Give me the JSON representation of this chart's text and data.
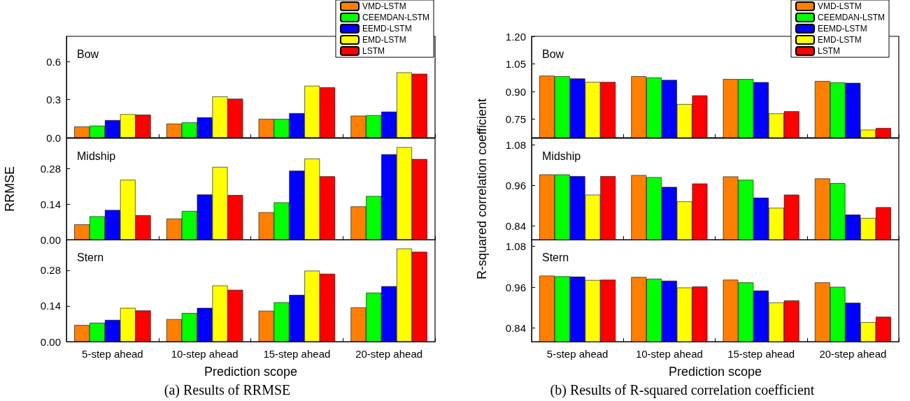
{
  "chart_data": [
    {
      "type": "bar",
      "title": "Bow",
      "categories": [
        null,
        null,
        null,
        null
      ],
      "legend": "top right",
      "tick_labels": "y",
      "ylim": [
        0,
        0.8
      ],
      "yticks": [
        {
          "value": 0,
          "label": "0.0"
        },
        0.3,
        0.6
      ],
      "series": [
        {
          "name": "VMD-LSTM",
          "color": "#ff8000",
          "values": [
            0.087,
            0.11,
            0.148,
            0.173
          ]
        },
        {
          "name": "CEEMDAN-LSTM",
          "color": "#00ff00",
          "values": [
            0.094,
            0.12,
            0.148,
            0.177
          ]
        },
        {
          "name": "EEMD-LSTM",
          "color": "#0000ff",
          "values": [
            0.138,
            0.16,
            0.193,
            0.205
          ]
        },
        {
          "name": "EMD-LSTM",
          "color": "#ffff00",
          "values": [
            0.185,
            0.325,
            0.409,
            0.515
          ]
        },
        {
          "name": "LSTM",
          "color": "#ff0000",
          "values": [
            0.181,
            0.307,
            0.397,
            0.504
          ]
        }
      ]
    },
    {
      "type": "bar",
      "title": "Midship",
      "ylabel": "RRMSE",
      "categories": [
        null,
        null,
        null,
        null
      ],
      "tick_labels": "y",
      "ylim": [
        0,
        0.4
      ],
      "yticks": [
        {
          "value": 0,
          "label": "0.00"
        },
        0.14,
        0.28
      ],
      "series": [
        {
          "color": "#ff8000",
          "values": [
            0.06,
            0.083,
            0.108,
            0.131
          ]
        },
        {
          "color": "#00ff00",
          "values": [
            0.092,
            0.113,
            0.147,
            0.172
          ]
        },
        {
          "color": "#0000ff",
          "values": [
            0.117,
            0.178,
            0.272,
            0.337
          ]
        },
        {
          "color": "#ffff00",
          "values": [
            0.236,
            0.287,
            0.32,
            0.365
          ]
        },
        {
          "color": "#ff0000",
          "values": [
            0.096,
            0.176,
            0.25,
            0.318
          ]
        }
      ]
    },
    {
      "type": "bar",
      "title": "Stern",
      "xlabel": "Prediction scope",
      "annotations": [
        "(a) Results of RRMSE"
      ],
      "categories": [
        "5-step ahead",
        "10-step ahead",
        "15-step ahead",
        "20-step ahead"
      ],
      "ylim": [
        0,
        0.4
      ],
      "yticks": [
        {
          "value": 0,
          "label": "0.00"
        },
        0.14,
        0.28
      ],
      "series": [
        {
          "color": "#ff8000",
          "values": [
            0.065,
            0.088,
            0.121,
            0.134
          ]
        },
        {
          "color": "#00ff00",
          "values": [
            0.074,
            0.112,
            0.154,
            0.192
          ]
        },
        {
          "color": "#0000ff",
          "values": [
            0.085,
            0.132,
            0.183,
            0.217
          ]
        },
        {
          "color": "#ffff00",
          "values": [
            0.132,
            0.22,
            0.278,
            0.365
          ]
        },
        {
          "color": "#ff0000",
          "values": [
            0.122,
            0.203,
            0.266,
            0.352
          ]
        }
      ]
    },
    {
      "type": "bar",
      "title": "Bow",
      "categories": [
        null,
        null,
        null,
        null
      ],
      "legend": "top right",
      "tick_labels": "y",
      "ylim": [
        0.65,
        1.2
      ],
      "yticks": [
        0.75,
        {
          "value": 0.9,
          "label": "0.90"
        },
        1.05,
        {
          "value": 1.2,
          "label": "1.20"
        }
      ],
      "series": [
        {
          "name": "VMD-LSTM",
          "color": "#ff8000",
          "values": [
            0.986,
            0.983,
            0.968,
            0.957
          ]
        },
        {
          "name": "CEEMDAN-LSTM",
          "color": "#00ff00",
          "values": [
            0.983,
            0.976,
            0.968,
            0.95
          ]
        },
        {
          "name": "EEMD-LSTM",
          "color": "#0000ff",
          "values": [
            0.971,
            0.963,
            0.951,
            0.947
          ]
        },
        {
          "name": "EMD-LSTM",
          "color": "#ffff00",
          "values": [
            0.952,
            0.832,
            0.781,
            0.693
          ]
        },
        {
          "name": "LSTM",
          "color": "#ff0000",
          "values": [
            0.952,
            0.879,
            0.793,
            0.702
          ]
        }
      ]
    },
    {
      "type": "bar",
      "title": "Midship",
      "ylabel": "R-squared correlation coefficient",
      "categories": [
        null,
        null,
        null,
        null
      ],
      "tick_labels": "y",
      "ylim": [
        0.8,
        1.1
      ],
      "yticks": [
        0.84,
        0.96,
        1.08
      ],
      "series": [
        {
          "color": "#ff8000",
          "values": [
            0.993,
            0.991,
            0.987,
            0.981
          ]
        },
        {
          "color": "#00ff00",
          "values": [
            0.993,
            0.985,
            0.977,
            0.967
          ]
        },
        {
          "color": "#0000ff",
          "values": [
            0.988,
            0.956,
            0.924,
            0.874
          ]
        },
        {
          "color": "#ffff00",
          "values": [
            0.933,
            0.913,
            0.894,
            0.864
          ]
        },
        {
          "color": "#ff0000",
          "values": [
            0.988,
            0.966,
            0.933,
            0.896
          ]
        }
      ]
    },
    {
      "type": "bar",
      "title": "Stern",
      "xlabel": "Prediction scope",
      "annotations": [
        "(b) Results of R-squared correlation coefficient"
      ],
      "categories": [
        "5-step ahead",
        "10-step ahead",
        "15-step ahead",
        "20-step ahead"
      ],
      "ylim": [
        0.8,
        1.1
      ],
      "yticks": [
        0.84,
        0.96,
        1.08
      ],
      "series": [
        {
          "color": "#ff8000",
          "values": [
            0.994,
            0.99,
            0.982,
            0.974
          ]
        },
        {
          "color": "#00ff00",
          "values": [
            0.992,
            0.985,
            0.974,
            0.961
          ]
        },
        {
          "color": "#0000ff",
          "values": [
            0.991,
            0.979,
            0.95,
            0.914
          ]
        },
        {
          "color": "#ffff00",
          "values": [
            0.981,
            0.959,
            0.915,
            0.857
          ]
        },
        {
          "color": "#ff0000",
          "values": [
            0.982,
            0.962,
            0.921,
            0.873
          ]
        }
      ]
    }
  ]
}
